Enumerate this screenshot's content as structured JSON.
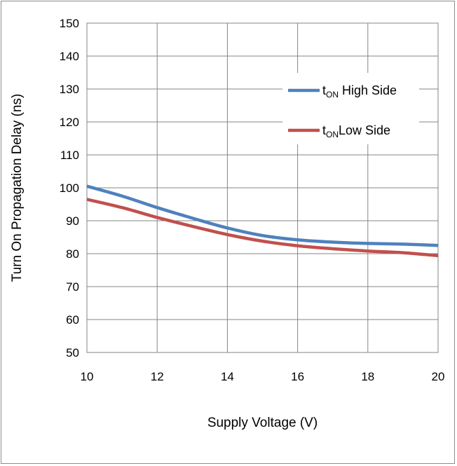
{
  "chart_data": {
    "type": "line",
    "title": "",
    "xlabel": "Supply Voltage (V)",
    "ylabel": "Turn On Propagation Delay (ns)",
    "xlim": [
      10,
      20
    ],
    "ylim": [
      50,
      150
    ],
    "xticks": [
      10,
      12,
      14,
      16,
      18,
      20
    ],
    "yticks": [
      50,
      60,
      70,
      80,
      90,
      100,
      110,
      120,
      130,
      140,
      150
    ],
    "grid": true,
    "legend_position": "top-right",
    "series": [
      {
        "name": "tON High Side",
        "legend": {
          "main": "t",
          "sub": "ON",
          "rest": " High Side"
        },
        "color": "#4f81bd",
        "x": [
          10,
          11,
          12,
          13,
          14,
          15,
          16,
          17,
          18,
          19,
          20
        ],
        "y": [
          100.5,
          97.5,
          94,
          90.8,
          87.8,
          85.5,
          84.2,
          83.5,
          83.1,
          82.9,
          82.5
        ]
      },
      {
        "name": "tON Low Side",
        "legend": {
          "main": "t",
          "sub": "ON",
          "rest": "Low Side"
        },
        "color": "#c0504d",
        "x": [
          10,
          11,
          12,
          13,
          14,
          15,
          16,
          17,
          18,
          19,
          20
        ],
        "y": [
          96.5,
          94,
          91,
          88.3,
          85.8,
          83.8,
          82.4,
          81.5,
          80.8,
          80.3,
          79.4
        ]
      }
    ]
  }
}
